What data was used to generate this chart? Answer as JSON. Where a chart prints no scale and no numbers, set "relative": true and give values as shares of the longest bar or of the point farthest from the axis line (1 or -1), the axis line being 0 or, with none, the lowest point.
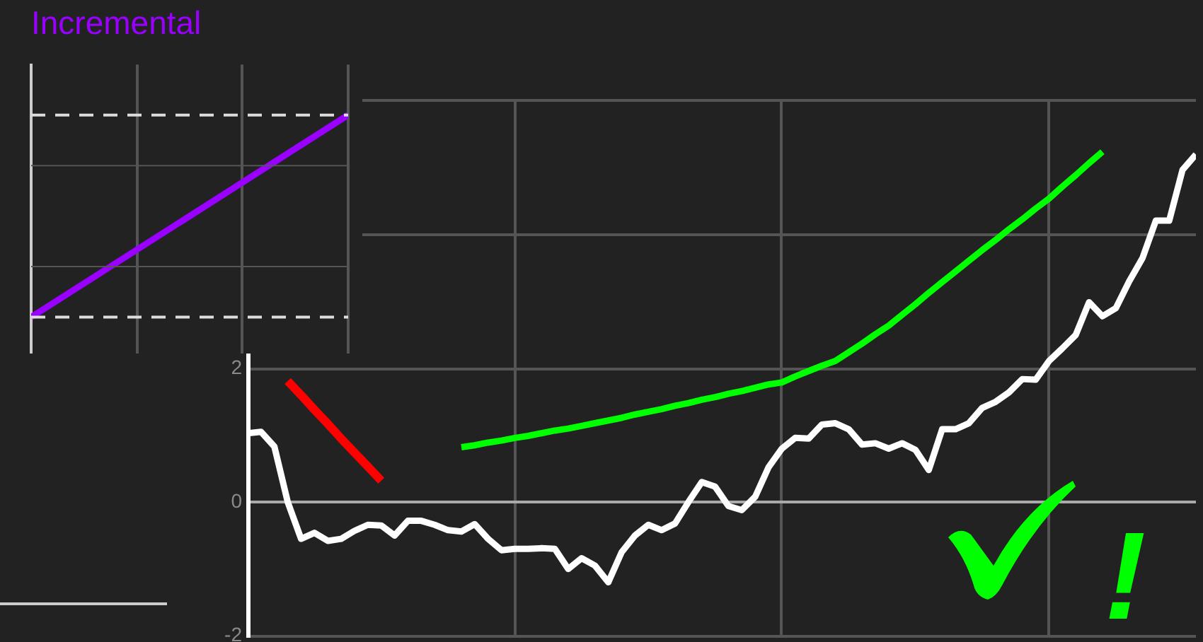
{
  "chart_data": [
    {
      "type": "line",
      "title": "Incremental",
      "relative": true,
      "categories": [
        null,
        null
      ],
      "tick_labels": false,
      "grid": "x",
      "legend": false,
      "marker": "none",
      "line_style": "solid",
      "series": [
        {
          "color": "#9900ff",
          "values": [
            0,
            1
          ]
        }
      ],
      "ref_lines": [
        {
          "axis": "y",
          "value": 0.25,
          "color": "#555555",
          "line_style": "solid"
        },
        {
          "axis": "y",
          "value": 0.75,
          "color": "#555555",
          "line_style": "solid"
        },
        {
          "axis": "y",
          "value": 0,
          "color": "#dddddd",
          "line_style": "dashed"
        },
        {
          "axis": "y",
          "value": 1,
          "color": "#dddddd",
          "line_style": "dashed"
        }
      ]
    },
    {
      "type": "line",
      "categories": [
        null,
        null,
        null,
        null,
        null,
        null,
        null,
        null,
        null,
        null,
        null,
        null,
        null,
        null,
        null,
        null,
        null,
        null,
        null,
        null,
        null,
        null,
        null,
        null,
        null,
        null,
        null,
        null,
        null,
        null,
        null,
        null,
        null,
        null,
        null,
        null,
        null,
        null,
        null,
        null,
        null,
        null,
        null,
        null,
        null,
        null,
        null,
        null,
        null,
        null,
        null,
        null,
        null,
        null,
        null,
        null,
        null,
        null,
        null,
        null,
        null,
        null,
        null,
        null,
        null,
        null,
        null,
        null,
        null,
        null,
        null,
        null
      ],
      "ylim": [
        -2,
        6
      ],
      "yticks": [
        -2,
        0,
        2,
        {
          "value": 4,
          "label": null
        },
        {
          "value": 6,
          "label": null
        }
      ],
      "tick_labels": "y",
      "grid": true,
      "legend": false,
      "marker": "none",
      "line_style": "solid",
      "annotations": [
        "!"
      ],
      "series": [
        {
          "color": "#ffffff",
          "values": [
            1.03,
            1.05,
            0.83,
            0.0,
            -0.55,
            -0.46,
            -0.58,
            -0.55,
            -0.43,
            -0.34,
            -0.35,
            -0.5,
            -0.28,
            -0.28,
            -0.34,
            -0.42,
            -0.44,
            -0.33,
            -0.55,
            -0.72,
            -0.7,
            -0.7,
            -0.69,
            -0.7,
            -1.0,
            -0.84,
            -0.95,
            -1.2,
            -0.75,
            -0.5,
            -0.34,
            -0.42,
            -0.32,
            0.0,
            0.3,
            0.23,
            -0.06,
            -0.12,
            0.08,
            0.52,
            0.8,
            0.96,
            0.95,
            1.16,
            1.18,
            1.09,
            0.86,
            0.88,
            0.8,
            0.88,
            0.78,
            0.48,
            1.09,
            1.09,
            1.18,
            1.41,
            1.5,
            1.64,
            1.84,
            1.83,
            2.11,
            2.3,
            2.5,
            2.99,
            2.78,
            2.9,
            3.3,
            3.65,
            4.21,
            4.21,
            4.97,
            5.2
          ]
        },
        {
          "color": "#ff0000",
          "values": [
            null,
            null,
            null,
            1.81,
            1.6,
            1.38,
            1.17,
            0.95,
            0.74,
            0.53,
            0.32,
            null,
            null,
            null,
            null,
            null,
            null,
            null,
            null,
            null,
            null,
            null,
            null,
            null,
            null,
            null,
            null,
            null,
            null,
            null,
            null,
            null,
            null,
            null,
            null,
            null,
            null,
            null,
            null,
            null,
            null,
            null,
            null,
            null,
            null,
            null,
            null,
            null,
            null,
            null,
            null,
            null,
            null,
            null,
            null,
            null,
            null,
            null,
            null,
            null,
            null,
            null,
            null,
            null,
            null,
            null,
            null,
            null,
            null,
            null,
            null,
            null
          ]
        },
        {
          "color": "#00ff00",
          "values": [
            null,
            null,
            null,
            null,
            null,
            null,
            null,
            null,
            null,
            null,
            null,
            null,
            null,
            null,
            null,
            null,
            0.82,
            0.85,
            0.89,
            0.92,
            0.96,
            0.99,
            1.03,
            1.07,
            1.1,
            1.14,
            1.18,
            1.22,
            1.26,
            1.31,
            1.35,
            1.39,
            1.44,
            1.48,
            1.53,
            1.57,
            1.62,
            1.66,
            1.71,
            1.76,
            1.79,
            1.88,
            1.96,
            2.04,
            2.11,
            2.24,
            2.37,
            2.51,
            2.64,
            2.8,
            2.96,
            3.13,
            3.29,
            3.45,
            3.61,
            3.77,
            3.92,
            4.08,
            4.23,
            4.39,
            4.54,
            4.72,
            4.89,
            5.07,
            5.24,
            null,
            null,
            null,
            null,
            null,
            null,
            null
          ]
        }
      ]
    }
  ]
}
